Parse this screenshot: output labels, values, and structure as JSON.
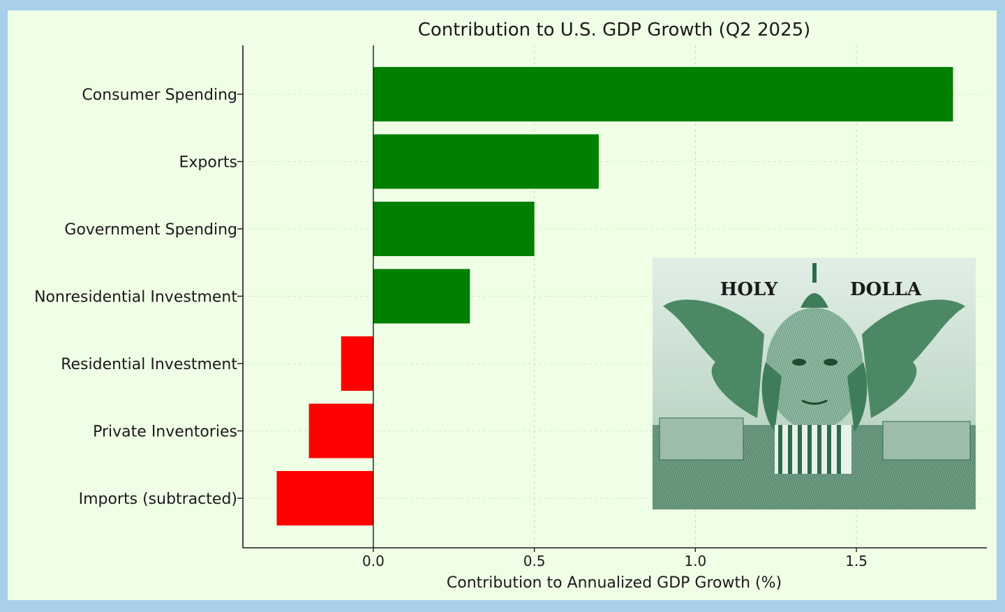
{
  "chart_data": {
    "type": "bar",
    "orientation": "horizontal",
    "title": "Contribution to U.S. GDP Growth (Q2 2025)",
    "xlabel": "Contribution to Annualized GDP Growth (%)",
    "ylabel": "",
    "categories": [
      "Consumer Spending",
      "Exports",
      "Government Spending",
      "Nonresidential Investment",
      "Residential Investment",
      "Private Inventories",
      "Imports (subtracted)"
    ],
    "values": [
      1.8,
      0.7,
      0.5,
      0.3,
      -0.1,
      -0.2,
      -0.3
    ],
    "xticks": [
      "0.0",
      "0.5",
      "1.0",
      "1.5"
    ],
    "xlim": [
      -0.405,
      1.905
    ],
    "grid": true,
    "positive_color": "#008000",
    "negative_color": "#ff0000"
  },
  "inset_image": {
    "caption_left": "HOLY",
    "caption_right": "DOLLA",
    "ink_color": "#2e6b4a",
    "paper_color": "#cfe3d8"
  },
  "colors": {
    "background": "#efffe6",
    "border": "#a8d0ea",
    "axis": "#1a1a1a"
  }
}
